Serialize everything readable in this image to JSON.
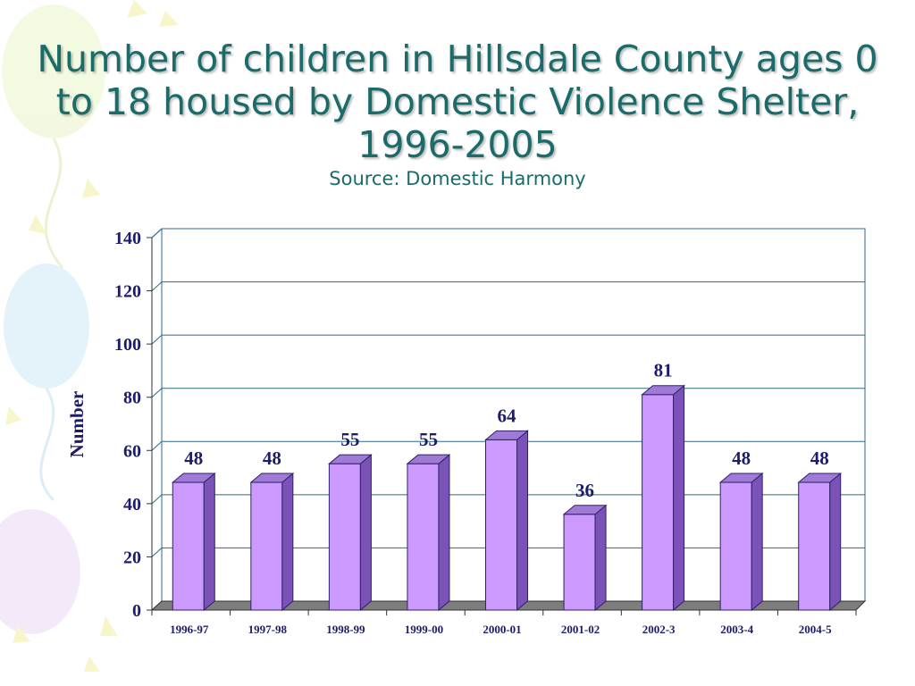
{
  "slide": {
    "title": "Number of children in Hillsdale County ages 0 to 18 housed by Domestic Violence Shelter, 1996-2005",
    "subtitle": "Source: Domestic Harmony"
  },
  "colors": {
    "title": "#1a6b69",
    "bar_front": "#cc99ff",
    "bar_side": "#7a52b8",
    "bar_top": "#9f7ad6",
    "axis_text": "#1c1c6b",
    "gridline": "#2b6a8a"
  },
  "chart_data": {
    "type": "bar",
    "style": "3d-column",
    "categories": [
      "1996-97",
      "1997-98",
      "1998-99",
      "1999-00",
      "2000-01",
      "2001-02",
      "2002-3",
      "2003-4",
      "2004-5"
    ],
    "series": [
      {
        "values": [
          48,
          48,
          55,
          55,
          64,
          36,
          81,
          48,
          48
        ]
      }
    ],
    "data_labels": [
      "48",
      "48",
      "55",
      "55",
      "64",
      "36",
      "81",
      "48",
      "48"
    ],
    "ylabel": "Number",
    "xlabel": "",
    "ylim": [
      0,
      140
    ],
    "yticks": [
      0,
      20,
      40,
      60,
      80,
      100,
      120,
      140
    ],
    "ytick_labels": [
      "0",
      "20",
      "40",
      "60",
      "80",
      "100",
      "120",
      "140"
    ],
    "grid": true,
    "legend": "none"
  }
}
